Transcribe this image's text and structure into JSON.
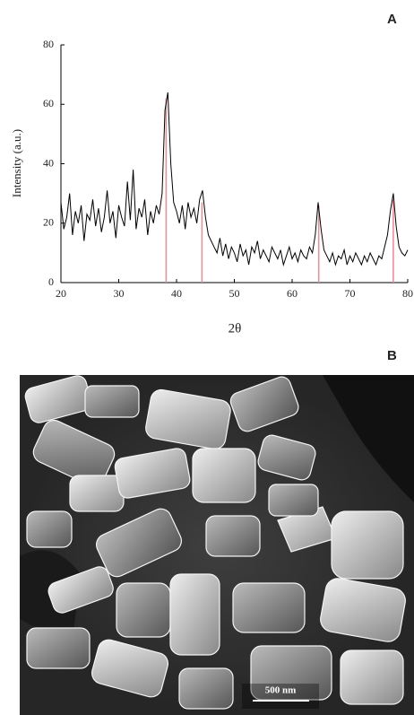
{
  "chart_data": {
    "type": "line",
    "panel_label": "A",
    "xlabel": "2θ",
    "ylabel": "Intensity (a.u.)",
    "xlim": [
      20,
      80
    ],
    "xticks": [
      20,
      30,
      40,
      50,
      60,
      70,
      80
    ],
    "ylim": [
      0,
      80
    ],
    "yticks": [
      0,
      20,
      40,
      60,
      80
    ],
    "color": "#000000",
    "x": [
      20,
      20.5,
      21,
      21.5,
      22,
      22.5,
      23,
      23.5,
      24,
      24.5,
      25,
      25.5,
      26,
      26.5,
      27,
      27.5,
      28,
      28.5,
      29,
      29.5,
      30,
      30.5,
      31,
      31.5,
      32,
      32.5,
      33,
      33.5,
      34,
      34.5,
      35,
      35.5,
      36,
      36.5,
      37,
      37.5,
      38,
      38.5,
      39,
      39.5,
      40,
      40.5,
      41,
      41.5,
      42,
      42.5,
      43,
      43.5,
      44,
      44.5,
      45,
      45.5,
      46,
      46.5,
      47,
      47.5,
      48,
      48.5,
      49,
      49.5,
      50,
      50.5,
      51,
      51.5,
      52,
      52.5,
      53,
      53.5,
      54,
      54.5,
      55,
      55.5,
      56,
      56.5,
      57,
      57.5,
      58,
      58.5,
      59,
      59.5,
      60,
      60.5,
      61,
      61.5,
      62,
      62.5,
      63,
      63.5,
      64,
      64.5,
      65,
      65.5,
      66,
      66.5,
      67,
      67.5,
      68,
      68.5,
      69,
      69.5,
      70,
      70.5,
      71,
      71.5,
      72,
      72.5,
      73,
      73.5,
      74,
      74.5,
      75,
      75.5,
      76,
      76.5,
      77,
      77.5,
      78,
      78.5,
      79,
      79.5,
      80
    ],
    "values": [
      27,
      18,
      22,
      30,
      16,
      24,
      20,
      26,
      14,
      23,
      21,
      28,
      19,
      25,
      17,
      22,
      31,
      20,
      24,
      15,
      26,
      22,
      19,
      34,
      21,
      38,
      18,
      25,
      22,
      28,
      16,
      24,
      20,
      26,
      23,
      30,
      58,
      64,
      40,
      27,
      24,
      20,
      26,
      18,
      27,
      22,
      25,
      20,
      28,
      31,
      22,
      16,
      14,
      12,
      10,
      15,
      9,
      13,
      8,
      12,
      10,
      7,
      13,
      9,
      11,
      6,
      12,
      10,
      14,
      8,
      11,
      9,
      7,
      12,
      10,
      8,
      11,
      6,
      9,
      12,
      8,
      10,
      7,
      11,
      9,
      8,
      12,
      10,
      16,
      27,
      18,
      11,
      9,
      7,
      10,
      6,
      9,
      8,
      11,
      6,
      9,
      7,
      10,
      8,
      6,
      9,
      7,
      10,
      8,
      6,
      9,
      8,
      12,
      16,
      24,
      30,
      19,
      12,
      10,
      9,
      11
    ],
    "reference_lines": {
      "color": "#e8909a",
      "x": [
        38.2,
        44.4,
        64.6,
        77.5
      ],
      "values": [
        62,
        27,
        26,
        28
      ]
    }
  },
  "image": {
    "panel_label": "B",
    "scale_bar": "500 nm"
  }
}
